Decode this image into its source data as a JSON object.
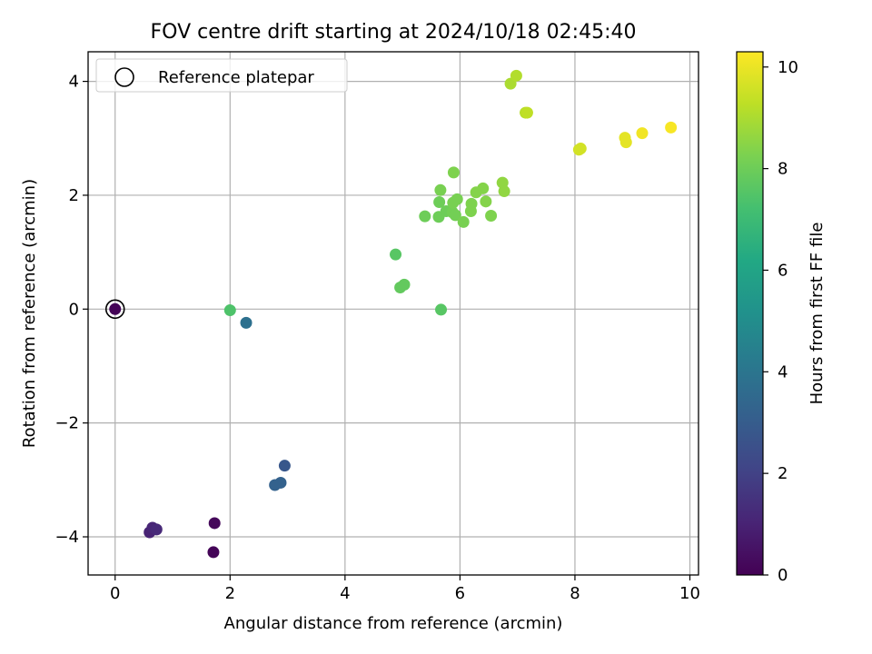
{
  "chart_data": {
    "type": "scatter",
    "title": "FOV centre drift starting at 2024/10/18 02:45:40",
    "xlabel": "Angular distance from reference (arcmin)",
    "ylabel": "Rotation from reference (arcmin)",
    "xlim": [
      -0.47,
      10.15
    ],
    "ylim": [
      -4.67,
      4.52
    ],
    "xticks": [
      0,
      2,
      4,
      6,
      8,
      10
    ],
    "xtick_labels": [
      "0",
      "2",
      "4",
      "6",
      "8",
      "10"
    ],
    "yticks": [
      -4,
      -2,
      0,
      2,
      4
    ],
    "ytick_labels": [
      "−4",
      "−2",
      "0",
      "2",
      "4"
    ],
    "grid": true,
    "legend": {
      "placement": "top-left",
      "entries": [
        "Reference platepar"
      ]
    },
    "colorbar": {
      "label": "Hours from first FF file",
      "colormap": "viridis",
      "range": [
        0,
        10.3
      ],
      "ticks": [
        0,
        2,
        4,
        6,
        8,
        10
      ],
      "tick_labels": [
        "0",
        "2",
        "4",
        "6",
        "8",
        "10"
      ]
    },
    "reference_point": {
      "x": 0,
      "y": 0
    },
    "points": [
      {
        "x": 0.0,
        "y": 0.0,
        "c": 0.1
      },
      {
        "x": 1.73,
        "y": -3.76,
        "c": 0.2
      },
      {
        "x": 1.71,
        "y": -4.27,
        "c": 0.1
      },
      {
        "x": 0.6,
        "y": -3.92,
        "c": 1.0
      },
      {
        "x": 0.65,
        "y": -3.84,
        "c": 1.1
      },
      {
        "x": 0.72,
        "y": -3.87,
        "c": 1.2
      },
      {
        "x": 2.78,
        "y": -3.09,
        "c": 3.2
      },
      {
        "x": 2.88,
        "y": -3.05,
        "c": 3.2
      },
      {
        "x": 2.95,
        "y": -2.75,
        "c": 2.8
      },
      {
        "x": 2.28,
        "y": -0.24,
        "c": 3.8
      },
      {
        "x": 2.0,
        "y": -0.02,
        "c": 7.4
      },
      {
        "x": 5.67,
        "y": -0.01,
        "c": 7.6
      },
      {
        "x": 4.96,
        "y": 0.38,
        "c": 7.8
      },
      {
        "x": 5.03,
        "y": 0.43,
        "c": 7.8
      },
      {
        "x": 4.88,
        "y": 0.96,
        "c": 7.6
      },
      {
        "x": 5.39,
        "y": 1.63,
        "c": 8.0
      },
      {
        "x": 5.63,
        "y": 1.62,
        "c": 8.0
      },
      {
        "x": 5.76,
        "y": 1.72,
        "c": 8.0
      },
      {
        "x": 5.87,
        "y": 1.7,
        "c": 8.1
      },
      {
        "x": 5.92,
        "y": 1.65,
        "c": 8.1
      },
      {
        "x": 6.06,
        "y": 1.53,
        "c": 8.2
      },
      {
        "x": 5.64,
        "y": 1.88,
        "c": 8.0
      },
      {
        "x": 5.88,
        "y": 1.87,
        "c": 8.2
      },
      {
        "x": 5.95,
        "y": 1.93,
        "c": 8.2
      },
      {
        "x": 5.66,
        "y": 2.09,
        "c": 8.2
      },
      {
        "x": 5.89,
        "y": 2.4,
        "c": 8.3
      },
      {
        "x": 6.19,
        "y": 1.72,
        "c": 8.3
      },
      {
        "x": 6.2,
        "y": 1.85,
        "c": 8.3
      },
      {
        "x": 6.28,
        "y": 2.05,
        "c": 8.4
      },
      {
        "x": 6.4,
        "y": 2.12,
        "c": 8.4
      },
      {
        "x": 6.45,
        "y": 1.89,
        "c": 8.4
      },
      {
        "x": 6.54,
        "y": 1.64,
        "c": 8.3
      },
      {
        "x": 6.74,
        "y": 2.22,
        "c": 8.6
      },
      {
        "x": 6.77,
        "y": 2.07,
        "c": 8.6
      },
      {
        "x": 6.88,
        "y": 3.96,
        "c": 9.0
      },
      {
        "x": 6.98,
        "y": 4.1,
        "c": 9.1
      },
      {
        "x": 7.14,
        "y": 3.45,
        "c": 9.2
      },
      {
        "x": 7.17,
        "y": 3.45,
        "c": 9.3
      },
      {
        "x": 8.07,
        "y": 2.8,
        "c": 9.6
      },
      {
        "x": 8.1,
        "y": 2.82,
        "c": 9.6
      },
      {
        "x": 8.87,
        "y": 3.01,
        "c": 9.9
      },
      {
        "x": 8.89,
        "y": 2.93,
        "c": 9.9
      },
      {
        "x": 9.17,
        "y": 3.09,
        "c": 10.1
      },
      {
        "x": 9.67,
        "y": 3.19,
        "c": 10.2
      }
    ]
  }
}
